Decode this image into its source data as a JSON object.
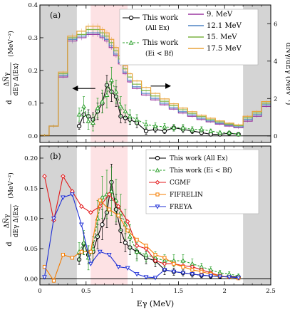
{
  "chart_data": [
    {
      "type": "line",
      "panel_label": "(a)",
      "xlim": [
        0,
        2.5
      ],
      "ylim": [
        -0.02,
        0.4
      ],
      "yticks": [
        0,
        0.1,
        0.2,
        0.3,
        0.4
      ],
      "ytick_labels": [
        "0.0",
        "0.1",
        "0.2",
        "0.3",
        "0.4"
      ],
      "y2lim": [
        -0.35,
        7.0
      ],
      "y2ticks": [
        0,
        2,
        4,
        6
      ],
      "y2tick_labels": [
        "0",
        "2",
        "4",
        "6"
      ],
      "ylabel_parts": [
        "d",
        "ΔN̅γ",
        "dEγ Δ⟨Ex⟩",
        "(MeV⁻²)"
      ],
      "y2label": "dN̅γ/dEγ  (MeV⁻¹)",
      "shaded_regions": [
        {
          "x": [
            0,
            0.4
          ],
          "color": "#d4d4d4"
        },
        {
          "x": [
            0.55,
            0.95
          ],
          "color": "#fde2e4"
        },
        {
          "x": [
            2.2,
            2.5
          ],
          "color": "#d4d4d4"
        }
      ],
      "legend": [
        {
          "label": "This work",
          "label2": "(All Ex)",
          "color": "#000000",
          "style": "circle-solid"
        },
        {
          "label": "This work",
          "label2": "(Ei < Bf)",
          "color": "#2ca02c",
          "style": "triangle-dashed"
        },
        {
          "label": "9. MeV",
          "color": "#9b37a0"
        },
        {
          "label": "12.1 MeV",
          "color": "#4f84c4"
        },
        {
          "label": "15. MeV",
          "color": "#7cb342"
        },
        {
          "label": "17.5 MeV",
          "color": "#e8a33a"
        }
      ],
      "edges": [
        0.0,
        0.1,
        0.2,
        0.3,
        0.4,
        0.5,
        0.55,
        0.6,
        0.65,
        0.7,
        0.75,
        0.8,
        0.85,
        0.9,
        0.95,
        1.0,
        1.1,
        1.2,
        1.3,
        1.4,
        1.5,
        1.6,
        1.7,
        1.8,
        1.9,
        2.0,
        2.1,
        2.2,
        2.3,
        2.4,
        2.5
      ],
      "step_series": [
        {
          "name": "9. MeV",
          "color": "#9b37a0",
          "values": [
            0.002,
            0.03,
            0.18,
            0.29,
            0.3,
            0.31,
            0.31,
            0.31,
            0.3,
            0.29,
            0.27,
            0.245,
            0.22,
            0.19,
            0.165,
            0.145,
            0.125,
            0.11,
            0.095,
            0.082,
            0.07,
            0.06,
            0.05,
            0.043,
            0.036,
            0.03,
            0.025,
            0.045,
            0.06,
            0.09
          ]
        },
        {
          "name": "12.1 MeV",
          "color": "#4f84c4",
          "values": [
            0.002,
            0.03,
            0.185,
            0.295,
            0.305,
            0.315,
            0.315,
            0.315,
            0.305,
            0.295,
            0.275,
            0.25,
            0.225,
            0.195,
            0.17,
            0.15,
            0.13,
            0.115,
            0.1,
            0.086,
            0.074,
            0.064,
            0.054,
            0.046,
            0.039,
            0.033,
            0.028,
            0.05,
            0.065,
            0.095
          ]
        },
        {
          "name": "15. MeV",
          "color": "#7cb342",
          "values": [
            0.002,
            0.03,
            0.19,
            0.3,
            0.31,
            0.325,
            0.325,
            0.325,
            0.315,
            0.305,
            0.285,
            0.26,
            0.235,
            0.205,
            0.18,
            0.158,
            0.138,
            0.122,
            0.106,
            0.092,
            0.08,
            0.069,
            0.059,
            0.05,
            0.043,
            0.036,
            0.031,
            0.055,
            0.07,
            0.1
          ]
        },
        {
          "name": "17.5 MeV",
          "color": "#e8a33a",
          "values": [
            0.002,
            0.03,
            0.195,
            0.305,
            0.32,
            0.335,
            0.335,
            0.335,
            0.325,
            0.315,
            0.295,
            0.27,
            0.245,
            0.215,
            0.19,
            0.168,
            0.148,
            0.13,
            0.113,
            0.098,
            0.085,
            0.074,
            0.063,
            0.054,
            0.046,
            0.039,
            0.034,
            0.06,
            0.075,
            0.105
          ]
        }
      ],
      "series": [
        {
          "name": "This work (All Ex)",
          "color": "#000000",
          "style": "solid",
          "marker": "circle",
          "x": [
            0.425,
            0.475,
            0.525,
            0.575,
            0.625,
            0.675,
            0.725,
            0.775,
            0.825,
            0.875,
            0.925,
            0.975,
            1.05,
            1.15,
            1.25,
            1.35,
            1.45,
            1.55,
            1.65,
            1.75,
            1.85,
            1.95,
            2.05,
            2.15
          ],
          "y": [
            0.03,
            0.065,
            0.06,
            0.05,
            0.075,
            0.1,
            0.155,
            0.135,
            0.12,
            0.06,
            0.055,
            0.05,
            0.04,
            0.015,
            0.02,
            0.015,
            0.025,
            0.02,
            0.015,
            0.01,
            0.005,
            0.005,
            0.008,
            0.005
          ],
          "err": [
            0.01,
            0.025,
            0.02,
            0.02,
            0.025,
            0.03,
            0.03,
            0.03,
            0.03,
            0.02,
            0.015,
            0.015,
            0.015,
            0.01,
            0.01,
            0.008,
            0.01,
            0.01,
            0.008,
            0.006,
            0.005,
            0.005,
            0.005,
            0.004
          ]
        },
        {
          "name": "This work (Ei < Bf)",
          "color": "#2ca02c",
          "style": "dashed",
          "marker": "triangle",
          "x": [
            0.425,
            0.475,
            0.525,
            0.575,
            0.625,
            0.675,
            0.725,
            0.775,
            0.825,
            0.875,
            0.925,
            0.975,
            1.05,
            1.15,
            1.25,
            1.35,
            1.45,
            1.55,
            1.65,
            1.75,
            1.85,
            1.95,
            2.05,
            2.15
          ],
          "y": [
            0.065,
            0.09,
            0.045,
            0.04,
            0.085,
            0.105,
            0.125,
            0.17,
            0.135,
            0.09,
            0.075,
            0.06,
            0.05,
            0.035,
            0.03,
            0.028,
            0.025,
            0.025,
            0.02,
            0.02,
            0.015,
            0.01,
            0.01,
            0.005
          ],
          "err": [
            0.02,
            0.03,
            0.025,
            0.025,
            0.03,
            0.035,
            0.04,
            0.04,
            0.035,
            0.03,
            0.02,
            0.02,
            0.015,
            0.012,
            0.01,
            0.01,
            0.01,
            0.01,
            0.008,
            0.008,
            0.006,
            0.005,
            0.005,
            0.004
          ]
        }
      ],
      "arrows": [
        {
          "from": 0.6,
          "to": 0.35,
          "y": 0.145
        },
        {
          "from": 1.2,
          "to": 1.42,
          "y": 1.6,
          "axis": "y2"
        }
      ]
    },
    {
      "type": "line",
      "panel_label": "(b)",
      "xlabel": "Eγ (MeV)",
      "xlim": [
        0,
        2.5
      ],
      "xticks": [
        0,
        0.5,
        1.0,
        1.5,
        2.0,
        2.5
      ],
      "xtick_labels": [
        "0",
        "0.5",
        "1",
        "1.5",
        "2",
        "2.5"
      ],
      "ylim": [
        -0.01,
        0.22
      ],
      "yticks": [
        0,
        0.05,
        0.1,
        0.15,
        0.2
      ],
      "ytick_labels": [
        "0.00",
        "0.05",
        "0.10",
        "0.15",
        "0.20"
      ],
      "ylabel_parts": [
        "d",
        "ΔN̅γ",
        "dEγ Δ⟨Ex⟩",
        "(MeV⁻²)"
      ],
      "shaded_regions": [
        {
          "x": [
            0,
            0.4
          ],
          "color": "#d4d4d4"
        },
        {
          "x": [
            0.55,
            0.95
          ],
          "color": "#fde2e4"
        },
        {
          "x": [
            2.2,
            2.5
          ],
          "color": "#d4d4d4"
        }
      ],
      "legend": [
        {
          "label": "This work (All Ex)",
          "color": "#000000",
          "style": "circle-solid"
        },
        {
          "label": "This work (Ei < Bf)",
          "color": "#2ca02c",
          "style": "triangle-dashed"
        },
        {
          "label": "CGMF",
          "color": "#e31a1c",
          "style": "diamond-solid"
        },
        {
          "label": "FIFRELIN",
          "color": "#f57c00",
          "style": "square-solid"
        },
        {
          "label": "FREYA",
          "color": "#1f2fd6",
          "style": "tri-down-solid"
        }
      ],
      "series": [
        {
          "name": "This work (All Ex)",
          "color": "#000000",
          "style": "solid",
          "marker": "circle",
          "x": [
            0.425,
            0.475,
            0.525,
            0.575,
            0.625,
            0.675,
            0.725,
            0.775,
            0.825,
            0.875,
            0.925,
            0.975,
            1.05,
            1.15,
            1.25,
            1.35,
            1.45,
            1.55,
            1.65,
            1.75,
            1.85,
            1.95,
            2.05,
            2.15
          ],
          "y": [
            0.032,
            0.058,
            0.04,
            0.045,
            0.07,
            0.09,
            0.11,
            0.16,
            0.115,
            0.08,
            0.06,
            0.052,
            0.045,
            0.035,
            0.03,
            0.015,
            0.012,
            0.01,
            0.008,
            0.006,
            0.005,
            0.004,
            0.004,
            0.003
          ],
          "err": [
            0.008,
            0.018,
            0.015,
            0.015,
            0.02,
            0.025,
            0.025,
            0.03,
            0.025,
            0.02,
            0.015,
            0.012,
            0.012,
            0.01,
            0.01,
            0.008,
            0.006,
            0.005,
            0.005,
            0.004,
            0.004,
            0.003,
            0.003,
            0.003
          ]
        },
        {
          "name": "This work (Ei < Bf)",
          "color": "#2ca02c",
          "style": "dashed",
          "marker": "triangle",
          "x": [
            0.425,
            0.475,
            0.525,
            0.575,
            0.625,
            0.675,
            0.725,
            0.775,
            0.825,
            0.875,
            0.925,
            0.975,
            1.05,
            1.15,
            1.25,
            1.35,
            1.45,
            1.55,
            1.65,
            1.75,
            1.85,
            1.95,
            2.05,
            2.15
          ],
          "y": [
            0.045,
            0.06,
            0.035,
            0.05,
            0.1,
            0.135,
            0.14,
            0.145,
            0.13,
            0.11,
            0.09,
            0.07,
            0.045,
            0.04,
            0.035,
            0.03,
            0.03,
            0.03,
            0.025,
            0.02,
            0.015,
            0.01,
            0.008,
            0.005
          ],
          "err": [
            0.015,
            0.02,
            0.02,
            0.02,
            0.03,
            0.035,
            0.04,
            0.04,
            0.035,
            0.03,
            0.025,
            0.02,
            0.015,
            0.012,
            0.01,
            0.01,
            0.01,
            0.01,
            0.008,
            0.006,
            0.005,
            0.004,
            0.004,
            0.003
          ]
        },
        {
          "name": "CGMF",
          "color": "#e31a1c",
          "style": "solid",
          "marker": "diamond",
          "x": [
            0.05,
            0.15,
            0.25,
            0.35,
            0.45,
            0.55,
            0.65,
            0.75,
            0.85,
            0.95,
            1.05,
            1.15,
            1.25,
            1.35,
            1.45,
            1.55,
            1.65,
            1.75,
            1.85,
            1.95,
            2.05,
            2.15
          ],
          "y": [
            0.17,
            0.097,
            0.17,
            0.145,
            0.12,
            0.11,
            0.12,
            0.14,
            0.12,
            0.095,
            0.055,
            0.05,
            0.03,
            0.025,
            0.025,
            0.022,
            0.02,
            0.015,
            0.01,
            0.005,
            0.003,
            0.002
          ]
        },
        {
          "name": "FIFRELIN",
          "color": "#f57c00",
          "style": "solid",
          "marker": "square",
          "x": [
            0.05,
            0.15,
            0.25,
            0.35,
            0.45,
            0.55,
            0.65,
            0.75,
            0.85,
            0.95,
            1.05,
            1.15,
            1.25,
            1.35,
            1.45,
            1.55,
            1.65,
            1.75,
            1.85,
            1.95,
            2.05,
            2.15
          ],
          "y": [
            0.02,
            -0.003,
            0.04,
            0.035,
            0.045,
            0.045,
            0.13,
            0.115,
            0.105,
            0.08,
            0.065,
            0.055,
            0.04,
            0.035,
            0.025,
            0.02,
            0.015,
            0.012,
            0.008,
            0.005,
            0.003,
            0.001
          ]
        },
        {
          "name": "FREYA",
          "color": "#1f2fd6",
          "style": "solid",
          "marker": "tri-down",
          "x": [
            0.05,
            0.15,
            0.25,
            0.35,
            0.45,
            0.55,
            0.65,
            0.75,
            0.85,
            0.95,
            1.05,
            1.15,
            1.25,
            1.35,
            1.45,
            1.55,
            1.65,
            1.75,
            1.85,
            1.95,
            2.05,
            2.15
          ],
          "y": [
            0.003,
            0.1,
            0.135,
            0.14,
            0.09,
            0.025,
            0.045,
            0.04,
            0.02,
            0.018,
            0.008,
            0.003,
            0.002,
            0.015,
            0.012,
            0.01,
            0.008,
            0.006,
            0.005,
            0.004,
            0.003,
            0.002
          ]
        }
      ]
    }
  ]
}
